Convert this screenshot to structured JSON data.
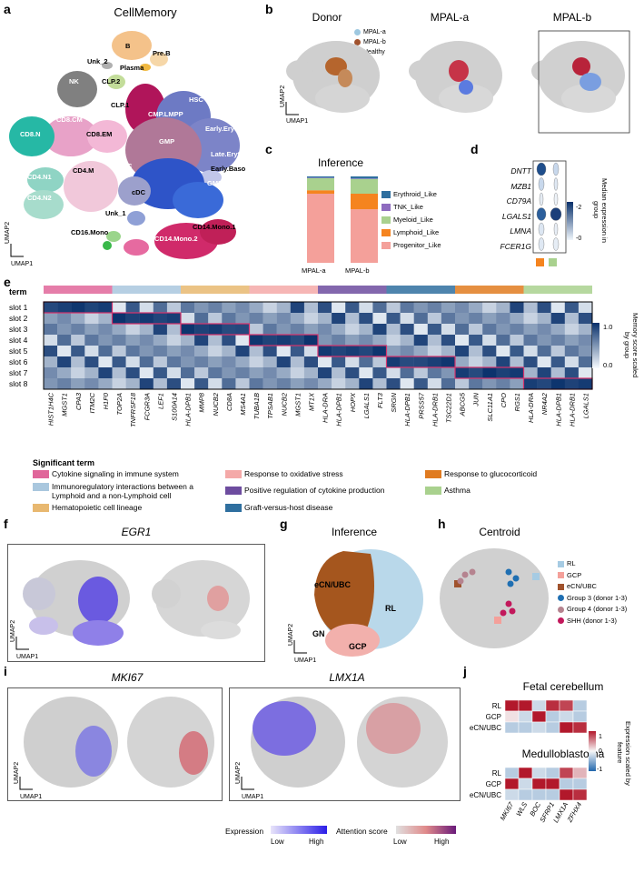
{
  "panel_labels": [
    "a",
    "b",
    "c",
    "d",
    "e",
    "f",
    "g",
    "h",
    "i",
    "j"
  ],
  "panel_a": {
    "title": "CellMemory",
    "cell_types": [
      "B",
      "Pre.B",
      "Unk_2",
      "Plasma",
      "NK",
      "CLP.2",
      "CLP.1",
      "HSC",
      "CMP.LMPP",
      "Early.Eryth",
      "CD8.CM",
      "CD8.EM",
      "Late.Eryth",
      "CD8.N",
      "Early.Baso",
      "GMP",
      "GMP.Neut",
      "CD4.M",
      "pDC",
      "CD4.N1",
      "CD4.N2",
      "cDC",
      "Unk_1",
      "CD14.Mono.1",
      "CD16.Mono",
      "CD14.Mono.2"
    ],
    "axis_x": "UMAP1",
    "axis_y": "UMAP2"
  },
  "panel_b": {
    "titles": [
      "Donor",
      "MPAL-a",
      "MPAL-b"
    ],
    "legend": [
      {
        "label": "MPAL-a",
        "color": "#9ec8e0"
      },
      {
        "label": "MPAL-b",
        "color": "#a0522d"
      },
      {
        "label": "Healthy",
        "color": "#c8c8c8"
      }
    ],
    "axis_x": "UMAP1",
    "axis_y": "UMAP2"
  },
  "panel_c": {
    "title": "Inference",
    "chart_data": {
      "type": "bar",
      "stacked": true,
      "categories": [
        "MPAL-a",
        "MPAL-b"
      ],
      "series": [
        {
          "name": "Progenitor_Like",
          "color": "#f4a09a",
          "values": [
            0.8,
            0.62
          ]
        },
        {
          "name": "Lymphoid_Like",
          "color": "#f5841f",
          "values": [
            0.04,
            0.18
          ]
        },
        {
          "name": "Myeloid_Like",
          "color": "#a9d18e",
          "values": [
            0.14,
            0.17
          ]
        },
        {
          "name": "TNK_Like",
          "color": "#8e6bbf",
          "values": [
            0.005,
            0.005
          ]
        },
        {
          "name": "Erythroid_Like",
          "color": "#2f6f9f",
          "values": [
            0.015,
            0.025
          ]
        }
      ],
      "legend_order": [
        "Erythroid_Like",
        "TNK_Like",
        "Myeloid_Like",
        "Lymphoid_Like",
        "Progenitor_Like"
      ]
    }
  },
  "panel_d": {
    "genes": [
      "DNTT",
      "MZB1",
      "CD79A",
      "LGALS1",
      "LMNA",
      "FCER1G"
    ],
    "colorbar_title": "Median expression in group",
    "colorbar_ticks": [
      "2",
      "0"
    ],
    "groups": [
      {
        "color": "#f5841f"
      },
      {
        "color": "#a9d18e"
      }
    ]
  },
  "panel_e": {
    "term_label": "term",
    "slots": [
      "slot 1",
      "slot 2",
      "slot 3",
      "slot 4",
      "slot 5",
      "slot 6",
      "slot 7",
      "slot 8"
    ],
    "genes": [
      "HIST1H4C",
      "MGST1",
      "CPA3",
      "ITM2C",
      "H1F0",
      "TOP2A",
      "TNFRSF18",
      "FCGR3A",
      "LEF1",
      "S100A14",
      "HLA-DPB1",
      "MMP8",
      "NUCB2",
      "CD8A",
      "MS4A1",
      "TUBA1B",
      "TPSAB1",
      "NUCB2",
      "MGST1",
      "MT1X",
      "HLA-DRA",
      "HLA-DPB1",
      "HOPX",
      "LGALS1",
      "FLT3",
      "SRGN",
      "HLA-DPB1",
      "PRSS57",
      "HLA-DRB1",
      "TSC22D1",
      "ABCG5",
      "JUN",
      "SLC11A1",
      "CPO",
      "RGS1",
      "HLA-DRA",
      "NR4A2",
      "HLA-DPB1",
      "HLA-DRB1",
      "LGALS1"
    ],
    "term_colors": [
      "#e0669a",
      "#a9c7de",
      "#e8b870",
      "#f4a9a8",
      "#6d4c9f",
      "#2f6f9f",
      "#e07b20",
      "#a9d18e"
    ],
    "colorbar_title": "Memory score scaled by group",
    "colorbar_ticks": [
      "1.0",
      "0.0"
    ],
    "legend_title": "Significant term",
    "legend": [
      {
        "label": "Cytokine signaling in immune system",
        "color": "#e0669a"
      },
      {
        "label": "Immunoregulatory interactions between a Lymphoid and a non-Lymphoid cell",
        "color": "#a9c7de"
      },
      {
        "label": "Hematopoietic cell lineage",
        "color": "#e8b870"
      },
      {
        "label": "Response to oxidative stress",
        "color": "#f4a9a8"
      },
      {
        "label": "Positive regulation of cytokine production",
        "color": "#6d4c9f"
      },
      {
        "label": "Graft-versus-host disease",
        "color": "#2f6f9f"
      },
      {
        "label": "Response to glucocorticoid",
        "color": "#e07b20"
      },
      {
        "label": "Asthma",
        "color": "#a9d18e"
      }
    ]
  },
  "panel_f": {
    "title": "EGR1",
    "axis_x": "UMAP1",
    "axis_y": "UMAP2"
  },
  "panel_g": {
    "title": "Inference",
    "labels": [
      "eCN/UBC",
      "RL",
      "GN",
      "GCP"
    ],
    "axis_x": "UMAP1",
    "axis_y": "UMAP2"
  },
  "panel_h": {
    "title": "Centroid",
    "legend": [
      {
        "label": "RL",
        "color": "#a6cbe3"
      },
      {
        "label": "GCP",
        "color": "#f4a09a"
      },
      {
        "label": "eCN/UBC",
        "color": "#a0522d"
      },
      {
        "label": "Group 3 (donor 1-3)",
        "color": "#1f6fb2"
      },
      {
        "label": "Group 4 (donor 1-3)",
        "color": "#b5838f"
      },
      {
        "label": "SHH (donor 1-3)",
        "color": "#c2185b"
      }
    ]
  },
  "panel_i": {
    "titles": [
      "MKI67",
      "LMX1A"
    ],
    "axis_x": "UMAP1",
    "axis_y": "UMAP2",
    "expression_label": "Expression",
    "attention_label": "Attention score",
    "low": "Low",
    "high": "High"
  },
  "panel_j": {
    "title1": "Fetal cerebellum",
    "title2": "Medulloblastoma",
    "rows": [
      "RL",
      "GCP",
      "eCN/UBC"
    ],
    "genes": [
      "MKI67",
      "WLS",
      "BOC",
      "SFRP1",
      "LMX1A",
      "ZFHX4"
    ],
    "colorbar_title": "Expression scaled by feature",
    "colorbar_ticks": [
      "1",
      "0",
      "-1"
    ]
  }
}
